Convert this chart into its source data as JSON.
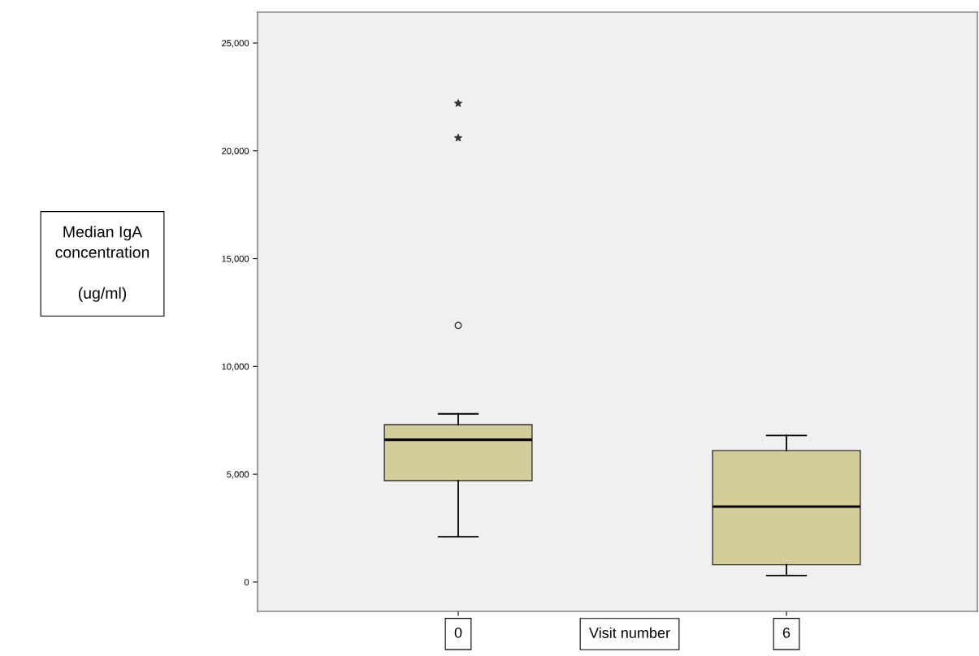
{
  "chart_data": {
    "type": "box",
    "xlabel": "Visit number",
    "ylabel": "Median IgA\nconcentration\n\n(ug/ml)",
    "categories": [
      "0",
      "6"
    ],
    "boxes": [
      {
        "low": 2100,
        "q1": 4700,
        "median": 6600,
        "q3": 7300,
        "high": 7800,
        "outliers": [
          11900,
          20600,
          22200
        ]
      },
      {
        "low": 300,
        "q1": 800,
        "median": 3500,
        "q3": 6100,
        "high": 6800
      }
    ],
    "color": "#d3cd9a",
    "ylim": [
      -1360,
      26430
    ],
    "yticks": [
      {
        "value": 0,
        "label": "0"
      },
      {
        "value": 5000,
        "label": "5,000"
      },
      {
        "value": 10000,
        "label": "10,000"
      },
      {
        "value": 15000,
        "label": "15,000"
      },
      {
        "value": 20000,
        "label": "20,000"
      },
      {
        "value": 25000,
        "label": "25,000"
      }
    ],
    "grid": false
  }
}
